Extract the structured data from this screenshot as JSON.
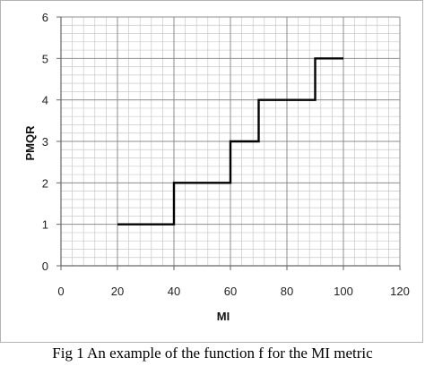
{
  "caption": "Fig 1 An example of the function f for the MI metric",
  "chart_data": {
    "type": "line",
    "title": "",
    "xlabel": "MI",
    "ylabel": "PMQR",
    "xlim": [
      0,
      120
    ],
    "ylim": [
      0,
      6
    ],
    "x_ticks": [
      0,
      20,
      40,
      60,
      80,
      100,
      120
    ],
    "y_ticks": [
      0,
      1,
      2,
      3,
      4,
      5,
      6
    ],
    "grid": true,
    "minor_grid_step_x": 4,
    "minor_grid_step_y": 0.2,
    "series": [
      {
        "step": "post",
        "color": "#000000",
        "points": [
          [
            20,
            1
          ],
          [
            40,
            1
          ],
          [
            40,
            2
          ],
          [
            60,
            2
          ],
          [
            60,
            3
          ],
          [
            70,
            3
          ],
          [
            70,
            4
          ],
          [
            90,
            4
          ],
          [
            90,
            5
          ],
          [
            100,
            5
          ]
        ]
      }
    ]
  }
}
